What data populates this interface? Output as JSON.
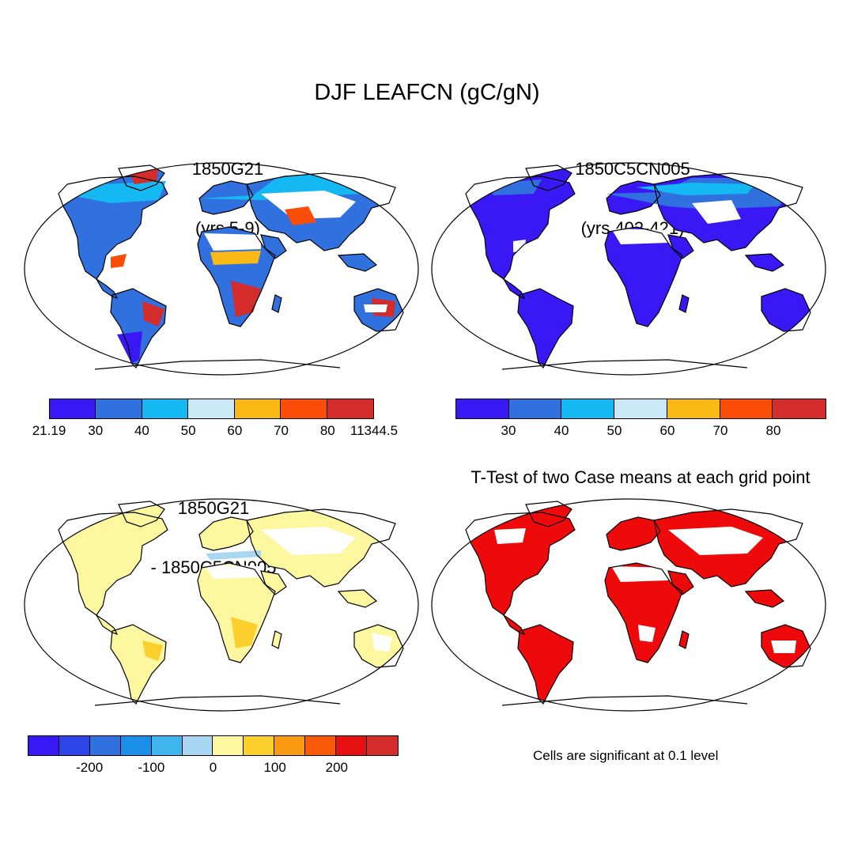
{
  "title": "DJF LEAFCN (gC/gN)",
  "panels": {
    "top_left": {
      "title_line1": "1850G21",
      "title_line2": "(yrs 5-9)"
    },
    "top_right": {
      "title_line1": "1850C5CN005",
      "title_line2": "(yrs 402-421)"
    },
    "bottom_left": {
      "title_line1": "1850G21",
      "title_line2": "- 1850C5CN005"
    },
    "bottom_right": {
      "title": "T-Test of two Case means at each grid point"
    }
  },
  "colorbars": {
    "top_left": {
      "colors": [
        "#3a18f5",
        "#3171df",
        "#14b8f2",
        "#c9e9f6",
        "#fbb916",
        "#fb4c08",
        "#d42b2b"
      ],
      "labels": [
        "21.19",
        "30",
        "40",
        "50",
        "60",
        "70",
        "80",
        "11344.5"
      ]
    },
    "top_right": {
      "colors": [
        "#3a18f5",
        "#3171df",
        "#14b8f2",
        "#c9e9f6",
        "#fbb916",
        "#fb4c08",
        "#d42b2b"
      ],
      "labels": [
        "30",
        "40",
        "50",
        "60",
        "70",
        "80"
      ]
    },
    "bottom": {
      "colors": [
        "#3a18f5",
        "#2d44e8",
        "#3171df",
        "#1a90ea",
        "#3fb5ee",
        "#a9d7f2",
        "#fdf7a0",
        "#fbd02c",
        "#f99a10",
        "#f95a08",
        "#e61010",
        "#d42b2b"
      ],
      "labels": [
        "-200",
        "-100",
        "0",
        "100",
        "200"
      ]
    }
  },
  "note": "Cells are significant at 0.1 level"
}
